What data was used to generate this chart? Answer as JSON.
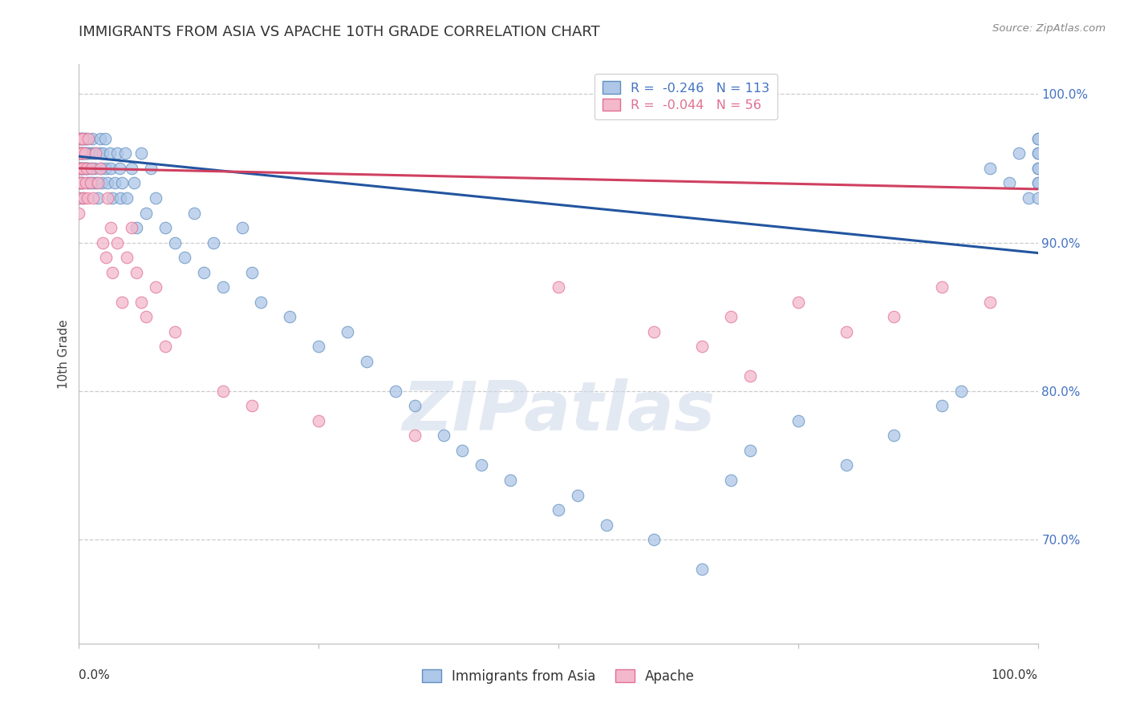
{
  "title": "IMMIGRANTS FROM ASIA VS APACHE 10TH GRADE CORRELATION CHART",
  "source": "Source: ZipAtlas.com",
  "ylabel": "10th Grade",
  "legend_blue_r_val": "-0.246",
  "legend_blue_n": "113",
  "legend_pink_r_val": "-0.044",
  "legend_pink_n": "56",
  "legend_label_blue": "Immigrants from Asia",
  "legend_label_pink": "Apache",
  "blue_face": "#aec6e8",
  "blue_edge": "#6090c0",
  "pink_face": "#f4b8cc",
  "pink_edge": "#e07090",
  "blue_line_color": "#2255a0",
  "pink_line_color": "#d04060",
  "watermark": "ZIPatlas",
  "right_ytick_labels": [
    "70.0%",
    "80.0%",
    "90.0%",
    "100.0%"
  ],
  "right_ytick_values": [
    0.7,
    0.8,
    0.9,
    1.0
  ],
  "blue_scatter_x": [
    0.0,
    0.0,
    0.0,
    0.0,
    0.0,
    0.001,
    0.001,
    0.001,
    0.002,
    0.002,
    0.002,
    0.003,
    0.003,
    0.003,
    0.003,
    0.004,
    0.004,
    0.004,
    0.004,
    0.005,
    0.005,
    0.005,
    0.006,
    0.006,
    0.006,
    0.007,
    0.007,
    0.008,
    0.008,
    0.009,
    0.009,
    0.01,
    0.01,
    0.011,
    0.012,
    0.013,
    0.014,
    0.015,
    0.015,
    0.016,
    0.017,
    0.018,
    0.02,
    0.021,
    0.022,
    0.023,
    0.024,
    0.025,
    0.027,
    0.028,
    0.03,
    0.032,
    0.033,
    0.035,
    0.037,
    0.04,
    0.042,
    0.043,
    0.045,
    0.048,
    0.05,
    0.055,
    0.057,
    0.06,
    0.065,
    0.07,
    0.075,
    0.08,
    0.09,
    0.1,
    0.11,
    0.12,
    0.13,
    0.14,
    0.15,
    0.17,
    0.18,
    0.19,
    0.22,
    0.25,
    0.28,
    0.3,
    0.33,
    0.35,
    0.38,
    0.4,
    0.42,
    0.45,
    0.5,
    0.52,
    0.55,
    0.6,
    0.65,
    0.68,
    0.7,
    0.75,
    0.8,
    0.85,
    0.9,
    0.92,
    0.95,
    0.97,
    0.98,
    0.99,
    1.0,
    1.0,
    1.0,
    1.0,
    1.0,
    1.0,
    1.0,
    1.0,
    1.0
  ],
  "blue_scatter_y": [
    0.96,
    0.95,
    0.94,
    0.93,
    0.97,
    0.96,
    0.95,
    0.94,
    0.97,
    0.96,
    0.95,
    0.96,
    0.95,
    0.94,
    0.97,
    0.96,
    0.95,
    0.94,
    0.93,
    0.97,
    0.96,
    0.95,
    0.97,
    0.96,
    0.95,
    0.96,
    0.95,
    0.97,
    0.95,
    0.96,
    0.94,
    0.96,
    0.95,
    0.94,
    0.96,
    0.95,
    0.97,
    0.96,
    0.94,
    0.95,
    0.96,
    0.94,
    0.93,
    0.96,
    0.97,
    0.95,
    0.94,
    0.96,
    0.97,
    0.95,
    0.94,
    0.96,
    0.95,
    0.93,
    0.94,
    0.96,
    0.95,
    0.93,
    0.94,
    0.96,
    0.93,
    0.95,
    0.94,
    0.91,
    0.96,
    0.92,
    0.95,
    0.93,
    0.91,
    0.9,
    0.89,
    0.92,
    0.88,
    0.9,
    0.87,
    0.91,
    0.88,
    0.86,
    0.85,
    0.83,
    0.84,
    0.82,
    0.8,
    0.79,
    0.77,
    0.76,
    0.75,
    0.74,
    0.72,
    0.73,
    0.71,
    0.7,
    0.68,
    0.74,
    0.76,
    0.78,
    0.75,
    0.77,
    0.79,
    0.8,
    0.95,
    0.94,
    0.96,
    0.93,
    0.97,
    0.95,
    0.94,
    0.96,
    0.93,
    0.97,
    0.95,
    0.94,
    0.96
  ],
  "pink_scatter_x": [
    0.0,
    0.0,
    0.0,
    0.0,
    0.0,
    0.0,
    0.001,
    0.001,
    0.001,
    0.002,
    0.002,
    0.003,
    0.003,
    0.004,
    0.004,
    0.005,
    0.006,
    0.007,
    0.008,
    0.009,
    0.01,
    0.012,
    0.013,
    0.015,
    0.017,
    0.02,
    0.022,
    0.025,
    0.028,
    0.03,
    0.033,
    0.035,
    0.04,
    0.045,
    0.05,
    0.055,
    0.06,
    0.065,
    0.07,
    0.08,
    0.09,
    0.1,
    0.15,
    0.18,
    0.25,
    0.35,
    0.5,
    0.6,
    0.65,
    0.68,
    0.7,
    0.75,
    0.8,
    0.85,
    0.9,
    0.95
  ],
  "pink_scatter_y": [
    0.97,
    0.96,
    0.95,
    0.94,
    0.93,
    0.92,
    0.96,
    0.95,
    0.94,
    0.97,
    0.95,
    0.96,
    0.94,
    0.97,
    0.95,
    0.93,
    0.96,
    0.94,
    0.95,
    0.93,
    0.97,
    0.94,
    0.95,
    0.93,
    0.96,
    0.94,
    0.95,
    0.9,
    0.89,
    0.93,
    0.91,
    0.88,
    0.9,
    0.86,
    0.89,
    0.91,
    0.88,
    0.86,
    0.85,
    0.87,
    0.83,
    0.84,
    0.8,
    0.79,
    0.78,
    0.77,
    0.87,
    0.84,
    0.83,
    0.85,
    0.81,
    0.86,
    0.84,
    0.85,
    0.87,
    0.86
  ],
  "blue_trend_y_start": 0.958,
  "blue_trend_y_end": 0.893,
  "pink_trend_y_start": 0.95,
  "pink_trend_y_end": 0.936,
  "xlim": [
    0.0,
    1.0
  ],
  "ylim": [
    0.63,
    1.02
  ],
  "grid_color": "#cccccc",
  "background_color": "#ffffff",
  "right_label_color": "#4472c4",
  "title_color": "#333333",
  "source_color": "#888888",
  "ylabel_color": "#444444"
}
